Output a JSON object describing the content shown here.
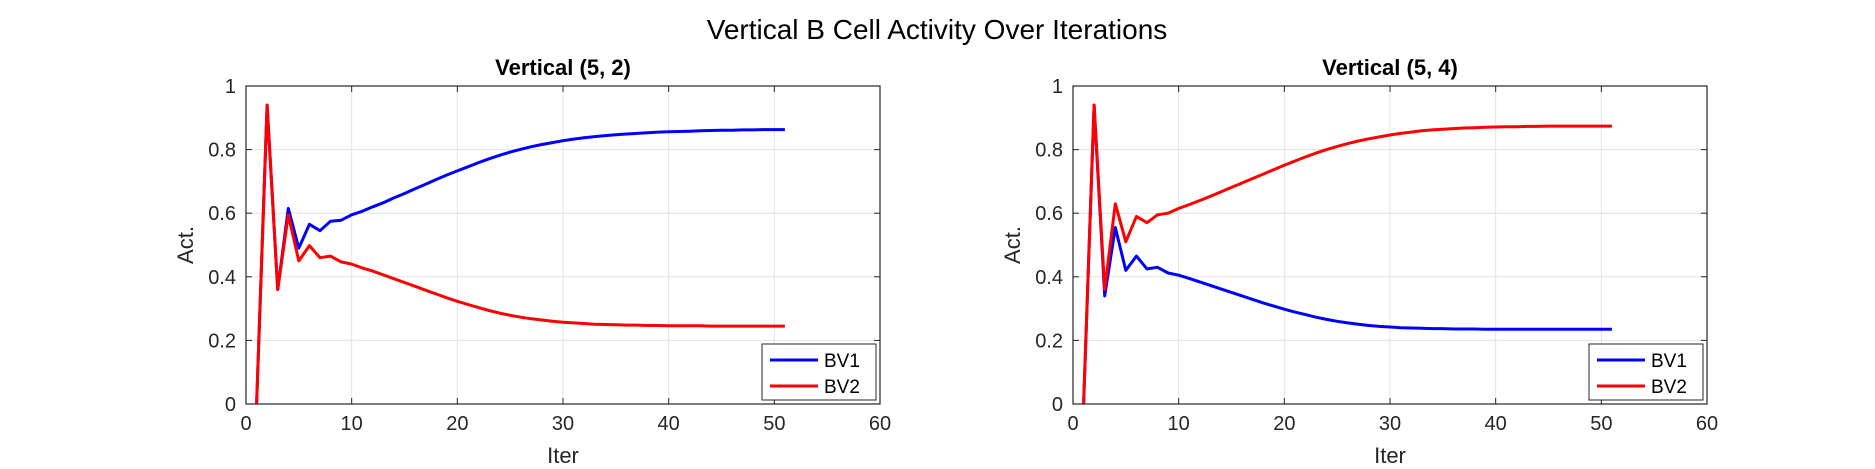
{
  "figure": {
    "suptitle": "Vertical B Cell Activity Over Iterations"
  },
  "colors": {
    "BV1": "#0000ff",
    "BV2": "#ff0000",
    "grid": "#e3e3e3",
    "axis": "#262626"
  },
  "chart_data": [
    {
      "type": "line",
      "title": "Vertical (5, 2)",
      "xlabel": "Iter",
      "ylabel": "Act.",
      "xlim": [
        0,
        60
      ],
      "ylim": [
        0,
        1
      ],
      "xticks": [
        0,
        10,
        20,
        30,
        40,
        50,
        60
      ],
      "yticks": [
        0,
        0.2,
        0.4,
        0.6,
        0.8,
        1
      ],
      "ytick_labels": [
        "0",
        "0.2",
        "0.4",
        "0.6",
        "0.8",
        "1"
      ],
      "grid": true,
      "legend_position": "bottom-right",
      "series": [
        {
          "name": "BV1",
          "color": "#0000ff",
          "x": [
            1,
            2,
            3,
            4,
            5,
            6,
            7,
            8,
            9,
            10,
            11,
            12,
            13,
            14,
            15,
            16,
            17,
            18,
            19,
            20,
            21,
            22,
            23,
            24,
            25,
            26,
            27,
            28,
            29,
            30,
            31,
            32,
            33,
            34,
            35,
            36,
            37,
            38,
            39,
            40,
            41,
            42,
            43,
            44,
            45,
            46,
            47,
            48,
            49,
            50,
            51
          ],
          "y": [
            0,
            0.94,
            0.36,
            0.615,
            0.49,
            0.565,
            0.545,
            0.575,
            0.578,
            0.595,
            0.606,
            0.62,
            0.633,
            0.648,
            0.662,
            0.677,
            0.691,
            0.706,
            0.72,
            0.733,
            0.746,
            0.759,
            0.771,
            0.782,
            0.792,
            0.801,
            0.809,
            0.816,
            0.822,
            0.828,
            0.833,
            0.837,
            0.841,
            0.844,
            0.847,
            0.849,
            0.851,
            0.853,
            0.855,
            0.856,
            0.857,
            0.858,
            0.859,
            0.86,
            0.861,
            0.861,
            0.862,
            0.862,
            0.863,
            0.863,
            0.863
          ]
        },
        {
          "name": "BV2",
          "color": "#ff0000",
          "x": [
            1,
            2,
            3,
            4,
            5,
            6,
            7,
            8,
            9,
            10,
            11,
            12,
            13,
            14,
            15,
            16,
            17,
            18,
            19,
            20,
            21,
            22,
            23,
            24,
            25,
            26,
            27,
            28,
            29,
            30,
            31,
            32,
            33,
            34,
            35,
            36,
            37,
            38,
            39,
            40,
            41,
            42,
            43,
            44,
            45,
            46,
            47,
            48,
            49,
            50,
            51
          ],
          "y": [
            0,
            0.94,
            0.36,
            0.595,
            0.45,
            0.498,
            0.46,
            0.465,
            0.447,
            0.44,
            0.428,
            0.418,
            0.406,
            0.394,
            0.382,
            0.37,
            0.358,
            0.346,
            0.334,
            0.323,
            0.313,
            0.303,
            0.294,
            0.286,
            0.279,
            0.273,
            0.268,
            0.264,
            0.26,
            0.257,
            0.255,
            0.253,
            0.251,
            0.25,
            0.249,
            0.248,
            0.248,
            0.247,
            0.247,
            0.246,
            0.246,
            0.246,
            0.246,
            0.245,
            0.245,
            0.245,
            0.245,
            0.245,
            0.245,
            0.245,
            0.245
          ]
        }
      ]
    },
    {
      "type": "line",
      "title": "Vertical (5, 4)",
      "xlabel": "Iter",
      "ylabel": "Act.",
      "xlim": [
        0,
        60
      ],
      "ylim": [
        0,
        1
      ],
      "xticks": [
        0,
        10,
        20,
        30,
        40,
        50,
        60
      ],
      "yticks": [
        0,
        0.2,
        0.4,
        0.6,
        0.8,
        1
      ],
      "ytick_labels": [
        "0",
        "0.2",
        "0.4",
        "0.6",
        "0.8",
        "1"
      ],
      "grid": true,
      "legend_position": "bottom-right",
      "series": [
        {
          "name": "BV1",
          "color": "#0000ff",
          "x": [
            1,
            2,
            3,
            4,
            5,
            6,
            7,
            8,
            9,
            10,
            11,
            12,
            13,
            14,
            15,
            16,
            17,
            18,
            19,
            20,
            21,
            22,
            23,
            24,
            25,
            26,
            27,
            28,
            29,
            30,
            31,
            32,
            33,
            34,
            35,
            36,
            37,
            38,
            39,
            40,
            41,
            42,
            43,
            44,
            45,
            46,
            47,
            48,
            49,
            50,
            51
          ],
          "y": [
            0,
            0.94,
            0.34,
            0.555,
            0.42,
            0.465,
            0.425,
            0.43,
            0.412,
            0.405,
            0.395,
            0.384,
            0.373,
            0.362,
            0.351,
            0.34,
            0.329,
            0.318,
            0.308,
            0.298,
            0.289,
            0.281,
            0.273,
            0.266,
            0.26,
            0.255,
            0.251,
            0.247,
            0.244,
            0.242,
            0.24,
            0.239,
            0.238,
            0.237,
            0.237,
            0.236,
            0.236,
            0.236,
            0.235,
            0.235,
            0.235,
            0.235,
            0.235,
            0.235,
            0.235,
            0.235,
            0.235,
            0.235,
            0.235,
            0.235,
            0.235
          ]
        },
        {
          "name": "BV2",
          "color": "#ff0000",
          "x": [
            1,
            2,
            3,
            4,
            5,
            6,
            7,
            8,
            9,
            10,
            11,
            12,
            13,
            14,
            15,
            16,
            17,
            18,
            19,
            20,
            21,
            22,
            23,
            24,
            25,
            26,
            27,
            28,
            29,
            30,
            31,
            32,
            33,
            34,
            35,
            36,
            37,
            38,
            39,
            40,
            41,
            42,
            43,
            44,
            45,
            46,
            47,
            48,
            49,
            50,
            51
          ],
          "y": [
            0,
            0.94,
            0.36,
            0.63,
            0.51,
            0.59,
            0.57,
            0.595,
            0.6,
            0.615,
            0.627,
            0.64,
            0.653,
            0.667,
            0.681,
            0.695,
            0.709,
            0.723,
            0.737,
            0.751,
            0.764,
            0.777,
            0.789,
            0.8,
            0.81,
            0.819,
            0.827,
            0.834,
            0.84,
            0.846,
            0.851,
            0.855,
            0.859,
            0.862,
            0.864,
            0.866,
            0.868,
            0.869,
            0.87,
            0.871,
            0.872,
            0.872,
            0.873,
            0.873,
            0.874,
            0.874,
            0.874,
            0.874,
            0.874,
            0.874,
            0.874
          ]
        }
      ]
    }
  ]
}
